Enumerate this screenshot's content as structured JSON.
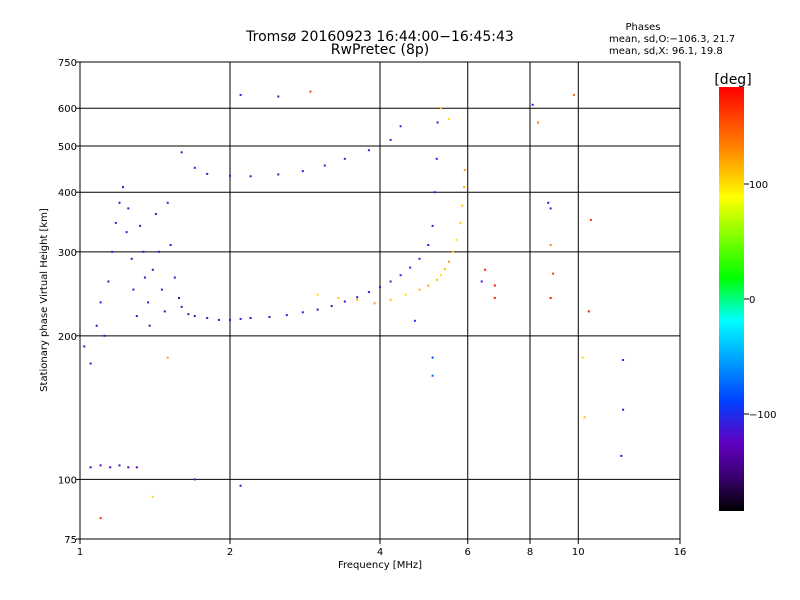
{
  "chart_data": {
    "type": "scatter",
    "title": "Tromsø 20160923 16:44:00−16:45:43",
    "subtitle": "RwPretec (8p)",
    "xlabel": "Frequency [MHz]",
    "ylabel": "Stationary phase Virtual Height [km]",
    "x_scale": "log",
    "y_scale": "log",
    "xlim": [
      1,
      16
    ],
    "ylim": [
      75,
      750
    ],
    "x_ticks": [
      "1",
      "2",
      "4",
      "6",
      "8",
      "10",
      "16"
    ],
    "y_ticks": [
      "75",
      "100",
      "200",
      "300",
      "400",
      "500",
      "600",
      "750"
    ],
    "grid": true,
    "stats": {
      "heading": "Phases",
      "line_o": "mean, sd,O:−106.3, 21.7",
      "line_x": "mean, sd,X:  96.1, 19.8"
    },
    "colorbar": {
      "label": "[deg]",
      "range": [
        -180,
        180
      ],
      "ticks": [
        "100",
        "0",
        "−100"
      ],
      "colors": [
        "#ff0000",
        "#ff8000",
        "#ffff00",
        "#00ff00",
        "#00ffff",
        "#0040ff",
        "#6000c0",
        "#3a0070",
        "#000000"
      ]
    },
    "series": [
      {
        "points": [
          [
            1.02,
            190,
            -120
          ],
          [
            1.05,
            175,
            -110
          ],
          [
            1.08,
            210,
            -115
          ],
          [
            1.1,
            235,
            -105
          ],
          [
            1.12,
            200,
            -118
          ],
          [
            1.14,
            260,
            -112
          ],
          [
            1.16,
            300,
            -108
          ],
          [
            1.18,
            345,
            -110
          ],
          [
            1.2,
            380,
            -112
          ],
          [
            1.22,
            410,
            -108
          ],
          [
            1.24,
            330,
            -118
          ],
          [
            1.25,
            370,
            -105
          ],
          [
            1.27,
            290,
            -115
          ],
          [
            1.28,
            250,
            -110
          ],
          [
            1.3,
            220,
            -120
          ],
          [
            1.32,
            340,
            -112
          ],
          [
            1.34,
            300,
            -108
          ],
          [
            1.35,
            265,
            -116
          ],
          [
            1.37,
            235,
            -110
          ],
          [
            1.38,
            210,
            -118
          ],
          [
            1.4,
            275,
            -112
          ],
          [
            1.42,
            360,
            -106
          ],
          [
            1.44,
            300,
            -114
          ],
          [
            1.46,
            250,
            -110
          ],
          [
            1.48,
            225,
            -118
          ],
          [
            1.5,
            380,
            -110
          ],
          [
            1.52,
            310,
            -108
          ],
          [
            1.55,
            265,
            -112
          ],
          [
            1.58,
            240,
            -116
          ],
          [
            1.6,
            230,
            -110
          ],
          [
            1.65,
            222,
            -114
          ],
          [
            1.7,
            220,
            -112
          ],
          [
            1.8,
            218,
            -110
          ],
          [
            1.9,
            216,
            -108
          ],
          [
            2,
            216,
            -112
          ],
          [
            2.1,
            217,
            -110
          ],
          [
            2.2,
            218,
            -114
          ],
          [
            2.4,
            219,
            -112
          ],
          [
            2.6,
            221,
            -110
          ],
          [
            2.8,
            224,
            -108
          ],
          [
            3,
            227,
            -112
          ],
          [
            3.2,
            231,
            -110
          ],
          [
            3.4,
            236,
            -114
          ],
          [
            3.6,
            241,
            -112
          ],
          [
            3.8,
            247,
            -110
          ],
          [
            4,
            253,
            -105
          ],
          [
            4.2,
            260,
            -100
          ],
          [
            4.4,
            268,
            -100
          ],
          [
            4.6,
            278,
            -95
          ],
          [
            4.8,
            290,
            -100
          ],
          [
            5,
            310,
            -100
          ],
          [
            5.1,
            340,
            -95
          ],
          [
            5.15,
            400,
            -100
          ],
          [
            5.2,
            470,
            -98
          ],
          [
            5.22,
            560,
            -100
          ],
          [
            1.05,
            106,
            -118
          ],
          [
            1.1,
            107,
            -115
          ],
          [
            1.15,
            106,
            -118
          ],
          [
            1.2,
            107,
            -112
          ],
          [
            1.25,
            106,
            -116
          ],
          [
            1.3,
            106,
            -118
          ],
          [
            1.6,
            485,
            -110
          ],
          [
            1.7,
            450,
            -112
          ],
          [
            1.8,
            437,
            -115
          ],
          [
            2,
            433,
            -110
          ],
          [
            2.2,
            432,
            -108
          ],
          [
            2.5,
            436,
            -105
          ],
          [
            2.8,
            443,
            -100
          ],
          [
            3.1,
            455,
            -105
          ],
          [
            3.4,
            470,
            -100
          ],
          [
            3.8,
            490,
            -95
          ],
          [
            4.2,
            515,
            -98
          ],
          [
            4.4,
            550,
            -100
          ]
        ]
      },
      {
        "points": [
          [
            3,
            244,
            100
          ],
          [
            3.3,
            240,
            105
          ],
          [
            3.6,
            238,
            110
          ],
          [
            3.9,
            234,
            120
          ],
          [
            4.2,
            238,
            110
          ],
          [
            4.5,
            244,
            100
          ],
          [
            4.8,
            250,
            110
          ],
          [
            5,
            255,
            120
          ],
          [
            5.2,
            262,
            110
          ],
          [
            5.3,
            268,
            100
          ],
          [
            5.4,
            276,
            110
          ],
          [
            5.5,
            286,
            120
          ],
          [
            5.6,
            300,
            110
          ],
          [
            5.7,
            318,
            100
          ],
          [
            5.8,
            345,
            105
          ],
          [
            5.85,
            375,
            110
          ],
          [
            5.9,
            410,
            115
          ],
          [
            5.92,
            445,
            120
          ],
          [
            5.5,
            570,
            100
          ],
          [
            5.3,
            600,
            110
          ]
        ]
      }
    ],
    "scattered_points": [
      [
        8.1,
        610,
        -100
      ],
      [
        8.3,
        560,
        130
      ],
      [
        9.8,
        640,
        140
      ],
      [
        8.7,
        380,
        -120
      ],
      [
        8.8,
        370,
        -95
      ],
      [
        8.8,
        310,
        130
      ],
      [
        8.9,
        270,
        160
      ],
      [
        8.8,
        240,
        170
      ],
      [
        10.5,
        225,
        170
      ],
      [
        10.6,
        350,
        160
      ],
      [
        6.5,
        275,
        170
      ],
      [
        6.8,
        255,
        175
      ],
      [
        6.8,
        240,
        165
      ],
      [
        6.4,
        260,
        -100
      ],
      [
        10.2,
        180,
        100
      ],
      [
        10.3,
        135,
        110
      ],
      [
        12.3,
        178,
        -110
      ],
      [
        12.3,
        140,
        -100
      ],
      [
        12.2,
        112,
        -115
      ],
      [
        2.1,
        640,
        -110
      ],
      [
        2.5,
        635,
        -115
      ],
      [
        2.9,
        650,
        160
      ],
      [
        1.7,
        100,
        -110
      ],
      [
        2.1,
        97,
        -115
      ],
      [
        1.4,
        92,
        100
      ],
      [
        1.1,
        83,
        160
      ],
      [
        1.5,
        180,
        120
      ],
      [
        4.7,
        215,
        -90
      ],
      [
        5.1,
        180,
        -80
      ],
      [
        5.1,
        165,
        -70
      ]
    ]
  }
}
